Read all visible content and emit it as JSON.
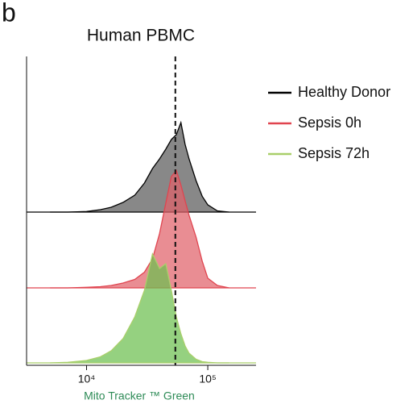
{
  "panel_label": "b",
  "chart_data": {
    "type": "offset-histogram",
    "title": "Human PBMC",
    "xlabel": "Mito Tracker ™ Green",
    "xscale": "log",
    "xlim": [
      3200,
      250000
    ],
    "xticks": [
      {
        "value": 10000,
        "label": "10⁴"
      },
      {
        "value": 100000,
        "label": "10⁵"
      }
    ],
    "reference_line_x": 54000,
    "x": [
      5000,
      7000,
      10000,
      13000,
      16000,
      20000,
      25000,
      30000,
      35000,
      40000,
      45000,
      50000,
      55000,
      60000,
      65000,
      70000,
      80000,
      90000,
      100000,
      120000,
      150000
    ],
    "series": [
      {
        "name": "Healthy Donor",
        "color": "#000000",
        "fill": "#5a5a5a",
        "values": [
          0,
          0,
          0.5,
          2,
          4,
          8,
          14,
          24,
          36,
          44,
          52,
          60,
          64,
          74,
          56,
          44,
          26,
          13,
          6,
          1,
          0
        ]
      },
      {
        "name": "Sepsis 0h",
        "color": "#e0444f",
        "fill": "#e0616a",
        "values": [
          0,
          0,
          0.5,
          1,
          2,
          4,
          7,
          13,
          24,
          45,
          70,
          92,
          97,
          85,
          72,
          60,
          42,
          22,
          8,
          2,
          0
        ]
      },
      {
        "name": "Sepsis 72h",
        "color": "#a9cf6a",
        "fill": "#6cbf4f",
        "values": [
          0,
          0.5,
          2,
          5,
          10,
          20,
          38,
          60,
          90,
          78,
          82,
          60,
          38,
          24,
          14,
          8,
          3,
          1,
          0.5,
          0,
          0
        ]
      }
    ]
  }
}
